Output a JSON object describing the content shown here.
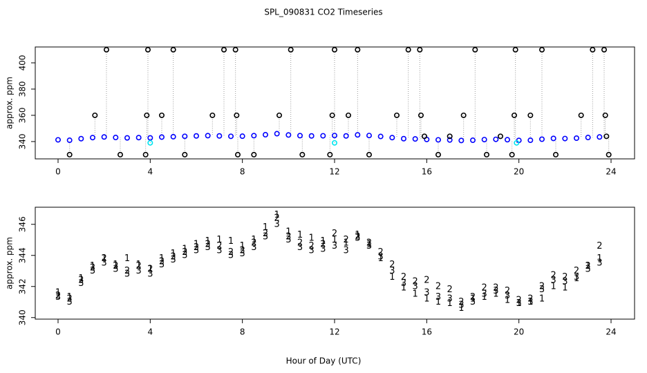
{
  "title": "SPL_090831  CO2 Timeseries",
  "x_label": "Hour of Day (UTC)",
  "chart_data": [
    {
      "type": "scatter",
      "y_label": "approx. ppm",
      "xlim": [
        -0.99,
        25.02
      ],
      "ylim": [
        326.8,
        412.1
      ],
      "xticks": [
        0,
        4,
        8,
        12,
        16,
        20,
        24
      ],
      "yticks": [
        340,
        360,
        380,
        400
      ],
      "series": [
        {
          "color": "#0000ff",
          "marker": "o",
          "x": [
            0,
            0.5,
            1,
            1.5,
            2,
            2.5,
            3,
            3.5,
            4,
            4.5,
            5,
            5.5,
            6,
            6.5,
            7,
            7.5,
            8,
            8.5,
            9,
            9.5,
            10,
            10.5,
            11,
            11.5,
            12,
            12.5,
            13,
            13.5,
            14,
            14.5,
            15,
            15.5,
            16,
            16.5,
            17,
            17.5,
            18,
            18.5,
            19,
            19.5,
            20,
            20.5,
            21,
            21.5,
            22,
            22.5,
            23,
            23.5
          ],
          "values": [
            341.3,
            341.0,
            342.2,
            343.0,
            343.5,
            343.1,
            342.8,
            343.0,
            342.8,
            343.4,
            343.7,
            344.0,
            344.3,
            344.5,
            344.3,
            344.0,
            344.1,
            344.5,
            345.2,
            346.0,
            345.0,
            344.5,
            344.3,
            344.4,
            344.6,
            344.3,
            345.1,
            344.6,
            343.9,
            343.0,
            342.2,
            342.0,
            341.6,
            341.3,
            341.2,
            340.8,
            341.0,
            341.5,
            341.7,
            341.4,
            340.9,
            341.0,
            341.8,
            342.4,
            342.3,
            342.6,
            343.1,
            343.5
          ]
        },
        {
          "color": "#000000",
          "marker": "o",
          "x": [
            0.5,
            1.6,
            2.1,
            2.7,
            3.8,
            3.85,
            3.9,
            4.5,
            5.0,
            5.5,
            6.7,
            7.2,
            7.7,
            7.75,
            7.8,
            8.5,
            9.6,
            10.1,
            10.6,
            11.8,
            11.9,
            12.0,
            12.6,
            13.0,
            13.5,
            14.7,
            15.2,
            15.7,
            15.75,
            15.9,
            16.5,
            17.0,
            17.6,
            18.1,
            18.6,
            19.2,
            19.7,
            19.8,
            19.85,
            20.5,
            21.0,
            21.6,
            22.7,
            23.2,
            23.7,
            23.75,
            23.8,
            23.9
          ],
          "values": [
            330,
            360,
            410,
            330,
            330,
            360,
            410,
            360,
            410,
            330,
            360,
            410,
            410,
            360,
            330,
            330,
            360,
            410,
            330,
            330,
            360,
            410,
            360,
            410,
            330,
            360,
            410,
            410,
            360,
            344,
            330,
            344,
            360,
            410,
            330,
            344,
            330,
            360,
            410,
            360,
            410,
            330,
            360,
            410,
            410,
            360,
            344,
            330
          ]
        },
        {
          "color": "#00e5ee",
          "marker": "o",
          "x": [
            4.0,
            12.0,
            19.9
          ],
          "values": [
            339,
            339,
            339
          ]
        }
      ]
    },
    {
      "type": "scatter",
      "y_label": "approx. ppm",
      "xlim": [
        -0.99,
        25.02
      ],
      "ylim": [
        339.9,
        347.1
      ],
      "xticks": [
        0,
        4,
        8,
        12,
        16,
        20,
        24
      ],
      "yticks": [
        340,
        342,
        344,
        346
      ],
      "series": [
        {
          "color": "#ff0000",
          "symbol": "1",
          "x": [
            0,
            0.5,
            1,
            1.5,
            2,
            2.5,
            3,
            3.5,
            4,
            4.5,
            5,
            5.5,
            6,
            6.5,
            7,
            7.5,
            8,
            8.5,
            9,
            9.5,
            10,
            10.5,
            11,
            11.5,
            12,
            12.5,
            13,
            13.5,
            14,
            14.5,
            15,
            15.5,
            16,
            16.5,
            17,
            17.5,
            18,
            18.5,
            19,
            19.5,
            20,
            20.5,
            21,
            21.5,
            22,
            22.5,
            23,
            23.5
          ],
          "values": [
            341.6,
            341.3,
            342.5,
            343.3,
            343.8,
            343.4,
            343.8,
            343.4,
            343.1,
            343.8,
            344.1,
            344.4,
            344.7,
            344.9,
            345.0,
            344.9,
            344.6,
            345.0,
            345.8,
            346.6,
            345.5,
            345.3,
            345.1,
            344.9,
            345.0,
            344.8,
            345.3,
            344.7,
            343.8,
            342.6,
            341.9,
            341.5,
            341.2,
            341.0,
            340.9,
            340.6,
            341.2,
            341.3,
            341.5,
            341.1,
            340.9,
            341.0,
            341.2,
            342.0,
            341.9,
            342.5,
            343.3,
            343.8
          ]
        },
        {
          "color": "#00aa00",
          "symbol": "2",
          "x": [
            0,
            0.5,
            1,
            1.5,
            2,
            2.5,
            3,
            3.5,
            4,
            4.5,
            5,
            5.5,
            6,
            6.5,
            7,
            7.5,
            8,
            8.5,
            9,
            9.5,
            10,
            10.5,
            11,
            11.5,
            12,
            12.5,
            13,
            13.5,
            14,
            14.5,
            15,
            15.5,
            16,
            16.5,
            17,
            17.5,
            18,
            18.5,
            19,
            19.5,
            20,
            20.5,
            21,
            21.5,
            22,
            22.5,
            23,
            23.5
          ],
          "values": [
            341.4,
            341.2,
            342.4,
            343.2,
            343.8,
            343.3,
            343.0,
            343.3,
            343.1,
            343.6,
            343.9,
            344.2,
            344.5,
            344.7,
            344.6,
            344.2,
            344.3,
            344.8,
            345.4,
            346.4,
            345.2,
            344.8,
            344.6,
            344.7,
            345.4,
            345.0,
            345.2,
            344.8,
            344.2,
            343.4,
            342.6,
            342.3,
            342.4,
            342.0,
            341.8,
            341.0,
            341.3,
            341.9,
            341.9,
            341.7,
            341.1,
            341.2,
            342.0,
            342.7,
            342.6,
            343.0,
            343.3,
            344.6
          ]
        },
        {
          "color": "#0000cc",
          "symbol": "3",
          "x": [
            0,
            0.5,
            1,
            1.5,
            2,
            2.5,
            3,
            3.5,
            4,
            4.5,
            5,
            5.5,
            6,
            6.5,
            7,
            7.5,
            8,
            8.5,
            9,
            9.5,
            10,
            10.5,
            11,
            11.5,
            12,
            12.5,
            13,
            13.5,
            14,
            14.5,
            15,
            15.5,
            16,
            16.5,
            17,
            17.5,
            18,
            18.5,
            19,
            19.5,
            20,
            20.5,
            21,
            21.5,
            22,
            22.5,
            23,
            23.5
          ],
          "values": [
            341.3,
            341.0,
            342.2,
            343.0,
            343.5,
            343.1,
            342.8,
            343.0,
            342.8,
            343.4,
            343.7,
            344.0,
            344.3,
            344.5,
            344.3,
            344.0,
            344.1,
            344.5,
            345.2,
            346.0,
            345.0,
            344.5,
            344.3,
            344.4,
            344.6,
            344.3,
            345.1,
            344.6,
            343.9,
            343.0,
            342.2,
            342.0,
            341.6,
            341.3,
            341.2,
            340.8,
            341.0,
            341.5,
            341.7,
            341.4,
            340.9,
            341.0,
            341.8,
            342.4,
            342.3,
            342.6,
            343.1,
            343.5
          ]
        }
      ]
    }
  ]
}
